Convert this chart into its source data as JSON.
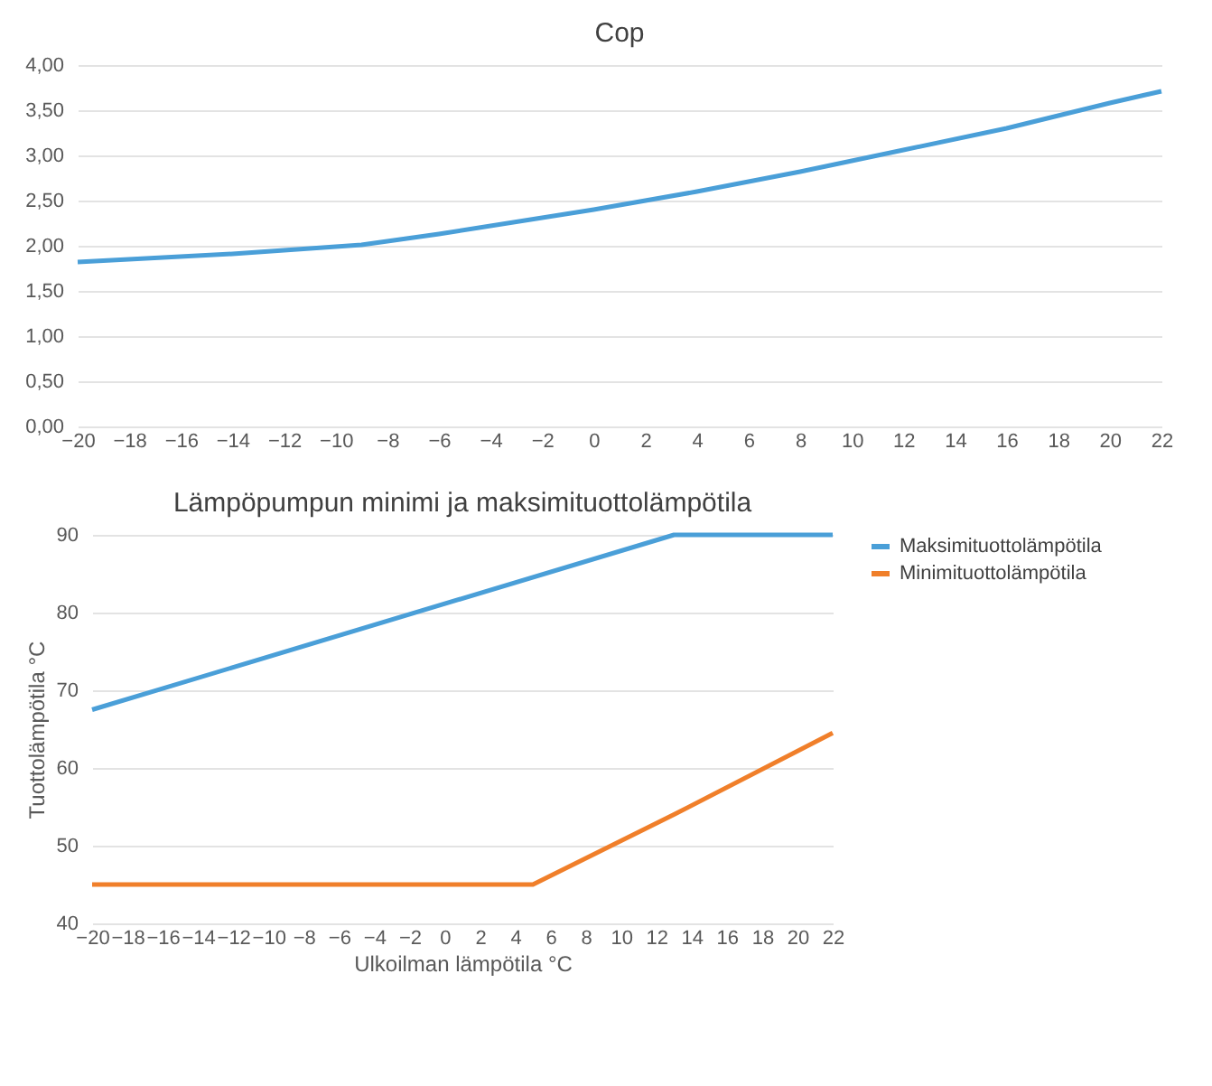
{
  "chart_data": [
    {
      "type": "line",
      "title": "Cop",
      "x": [
        -20,
        -14,
        -9,
        -6,
        0,
        4,
        8,
        12,
        16,
        20,
        22
      ],
      "series": [
        {
          "color": "#4a9fd8",
          "values": [
            1.82,
            1.91,
            2.01,
            2.13,
            2.4,
            2.6,
            2.82,
            3.06,
            3.3,
            3.58,
            3.71
          ]
        }
      ],
      "xlim": [
        -20,
        22
      ],
      "xticks": [
        -20,
        -18,
        -16,
        -14,
        -12,
        -10,
        -8,
        -6,
        -4,
        -2,
        0,
        2,
        4,
        6,
        8,
        10,
        12,
        14,
        16,
        18,
        20,
        22
      ],
      "ylim": [
        0,
        4
      ],
      "yticks": [
        {
          "value": 0,
          "label": "0,00"
        },
        {
          "value": 0.5,
          "label": "0,50"
        },
        {
          "value": 1,
          "label": "1,00"
        },
        {
          "value": 1.5,
          "label": "1,50"
        },
        {
          "value": 2,
          "label": "2,00"
        },
        {
          "value": 2.5,
          "label": "2,50"
        },
        {
          "value": 3,
          "label": "3,00"
        },
        {
          "value": 3.5,
          "label": "3,50"
        },
        {
          "value": 4,
          "label": "4,00"
        }
      ],
      "grid": "y"
    },
    {
      "type": "line",
      "title": "Lämpöpumpun minimi ja maksimituottolämpötila",
      "xlabel": "Ulkoilman lämpötila °C",
      "ylabel": "Tuottolämpötila °C",
      "series": [
        {
          "name": "Maksimituottolämpötila",
          "color": "#4a9fd8",
          "x": [
            -20,
            13,
            22
          ],
          "values": [
            67.5,
            90,
            90
          ]
        },
        {
          "name": "Minimituottolämpötila",
          "color": "#f07f2a",
          "x": [
            -20,
            5,
            13,
            22
          ],
          "values": [
            45,
            45,
            54,
            64.5
          ]
        }
      ],
      "xlim": [
        -20,
        22
      ],
      "xticks": [
        -20,
        -18,
        -16,
        -14,
        -12,
        -10,
        -8,
        -6,
        -4,
        -2,
        0,
        2,
        4,
        6,
        8,
        10,
        12,
        14,
        16,
        18,
        20,
        22
      ],
      "ylim": [
        40,
        90
      ],
      "yticks": [
        40,
        50,
        60,
        70,
        80,
        90
      ],
      "grid": "y",
      "legend": "right"
    }
  ]
}
